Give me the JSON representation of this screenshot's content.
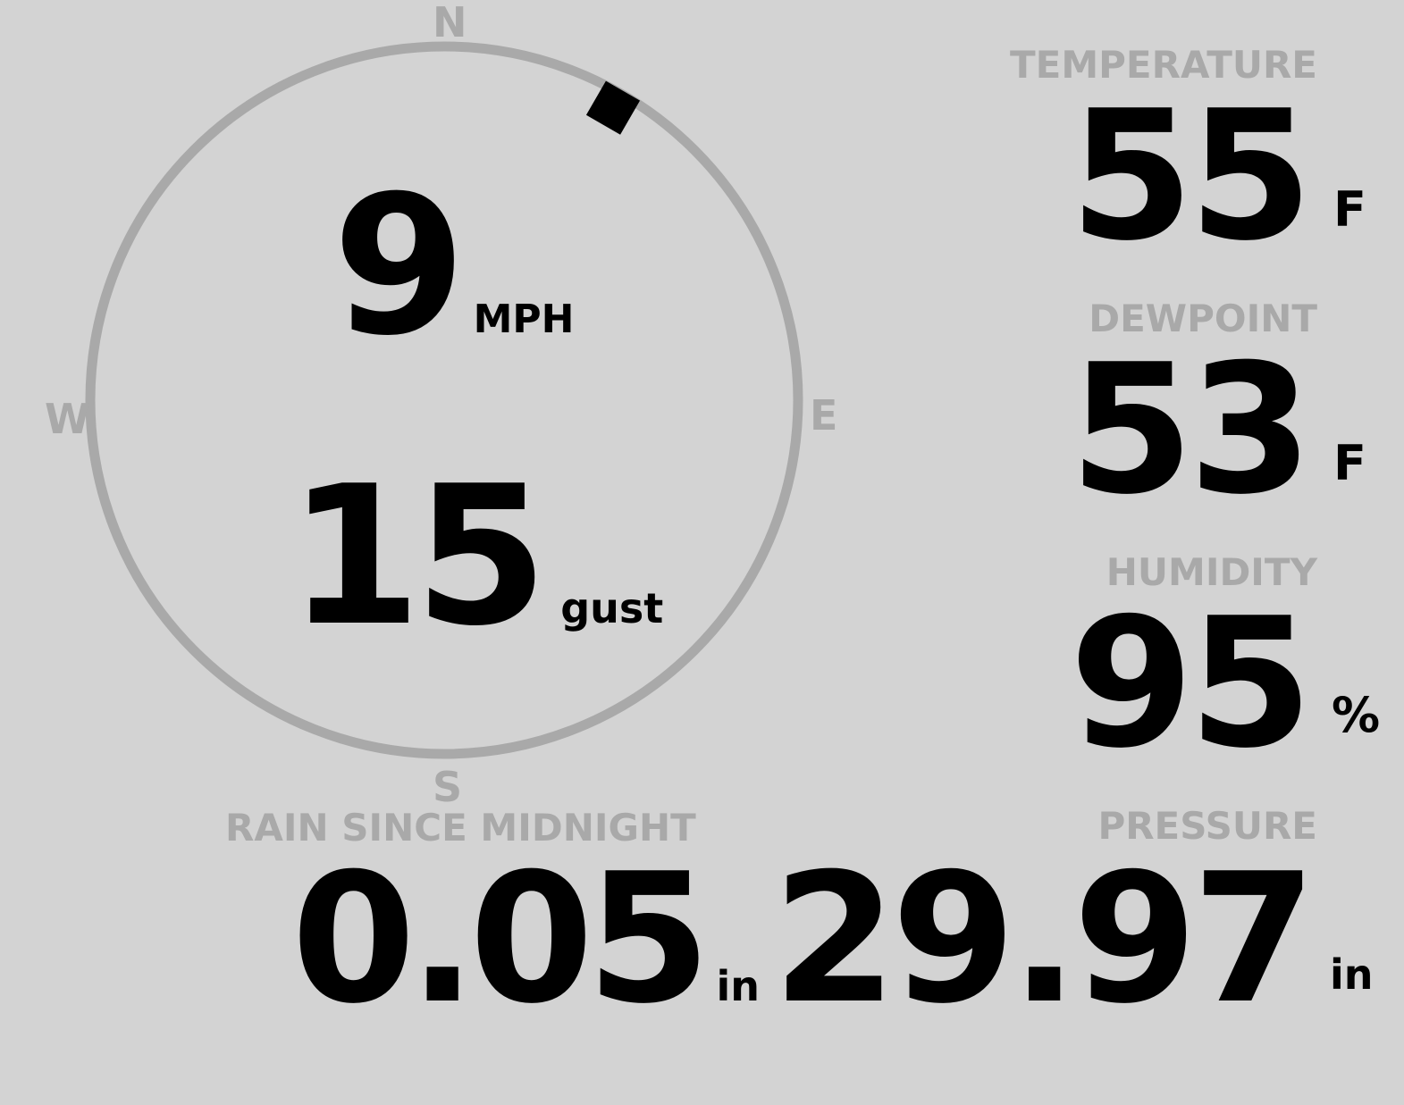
{
  "colors": {
    "background": "#d3d3d3",
    "label": "#a9a9a9",
    "value": "#000000",
    "ring": "#a9a9a9"
  },
  "compass": {
    "north": "N",
    "south": "S",
    "east": "E",
    "west": "W",
    "wind_direction_deg": 30
  },
  "wind": {
    "speed": "9",
    "speed_unit": "MPH",
    "gust": "15",
    "gust_unit": "gust"
  },
  "temperature": {
    "label": "TEMPERATURE",
    "value": "55",
    "unit": "F"
  },
  "dewpoint": {
    "label": "DEWPOINT",
    "value": "53",
    "unit": "F"
  },
  "humidity": {
    "label": "HUMIDITY",
    "value": "95",
    "unit": "%"
  },
  "rain": {
    "label": "RAIN SINCE MIDNIGHT",
    "value": "0.05",
    "unit": "in"
  },
  "pressure": {
    "label": "PRESSURE",
    "value": "29.97",
    "unit": "in"
  }
}
